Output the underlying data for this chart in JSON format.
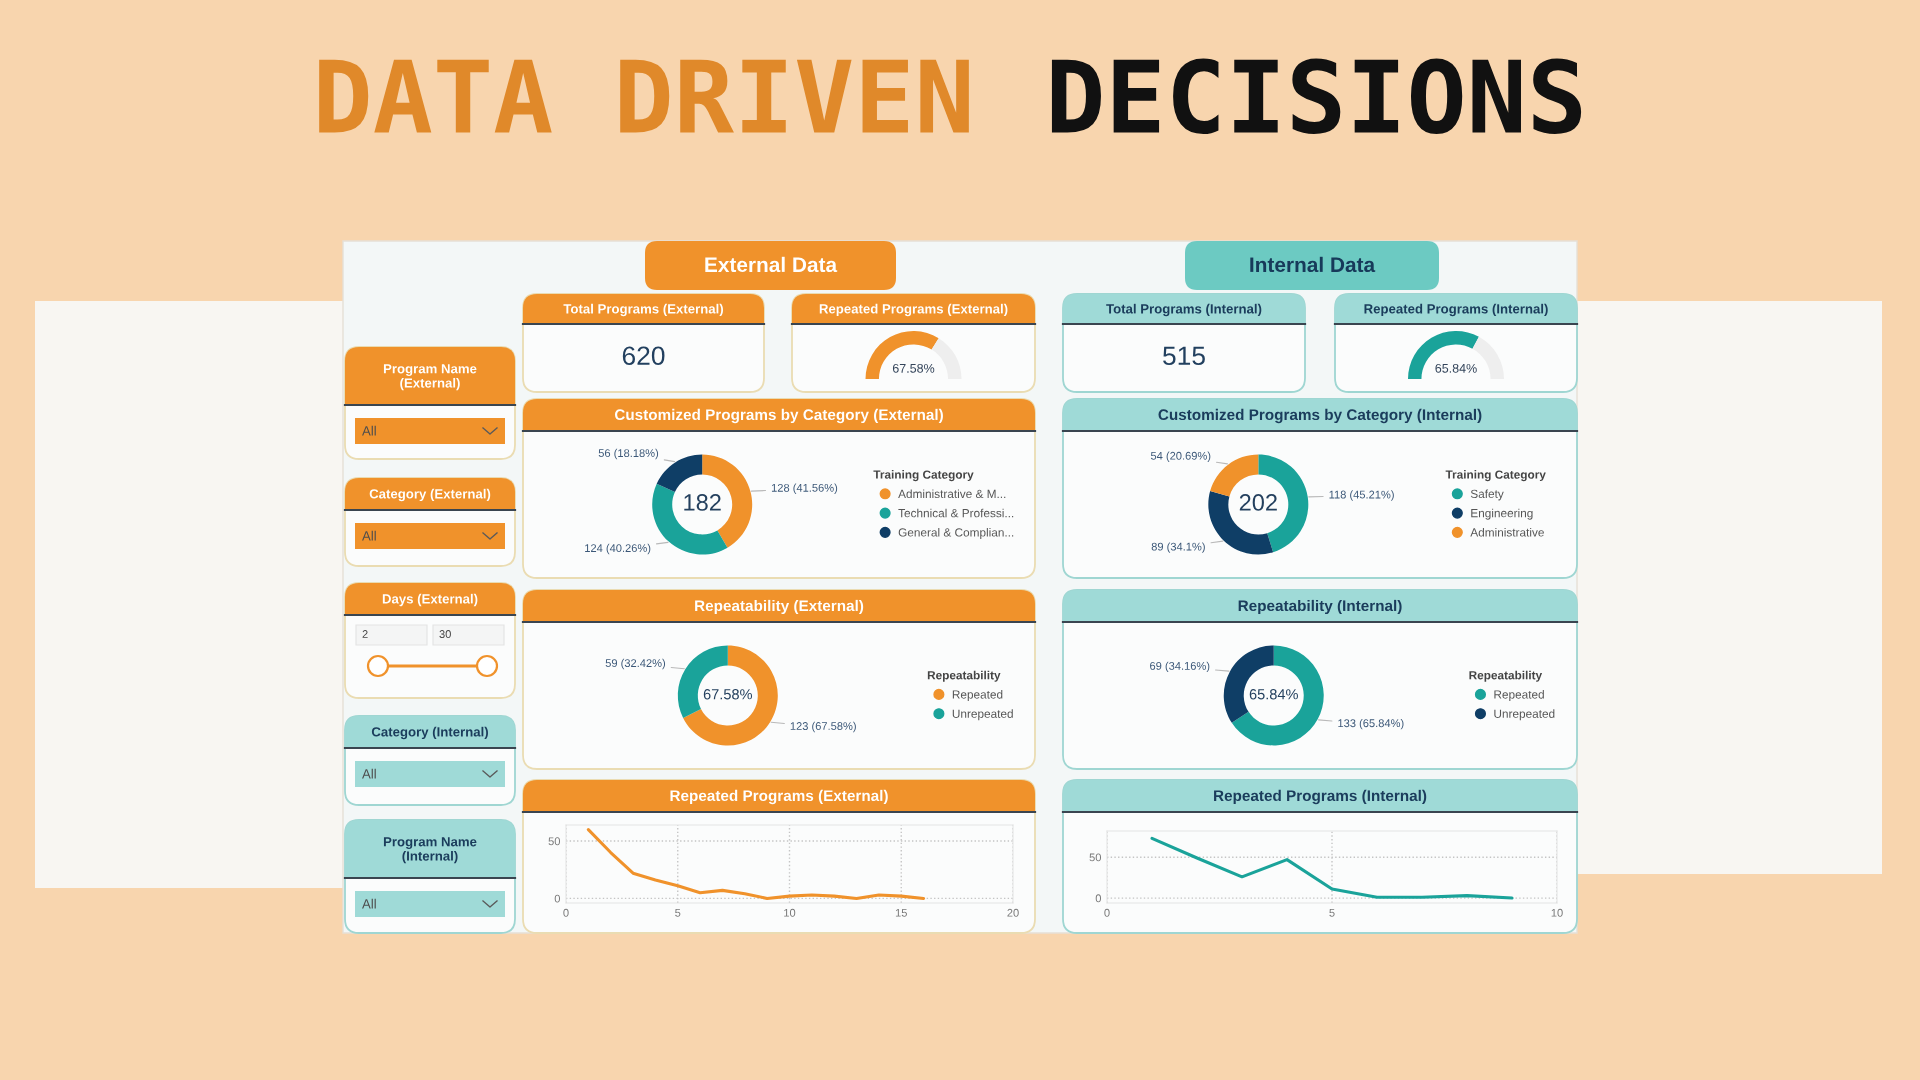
{
  "chart_data": [
    {
      "type": "other",
      "annotations": [
        "DATA DRIVEN",
        "DECISIONS"
      ]
    },
    {
      "type": "other",
      "title": "Program Name (External)",
      "annotations": [
        "All"
      ]
    },
    {
      "type": "other",
      "title": "Category (External)",
      "annotations": [
        "All"
      ]
    },
    {
      "type": "other",
      "title": "Days (External)",
      "annotations": [
        "2",
        "30"
      ]
    },
    {
      "type": "other",
      "title": "Category (Internal)",
      "annotations": [
        "All"
      ]
    },
    {
      "type": "other",
      "title": "Program Name (Internal)",
      "annotations": [
        "All"
      ]
    },
    {
      "type": "other",
      "title": "External Data"
    },
    {
      "type": "other",
      "title": "Total Programs (External)",
      "annotations": [
        "620"
      ]
    },
    {
      "type": "donut",
      "title": "Repeated Programs (External)",
      "categories": [
        null,
        null
      ],
      "values": [
        67.58,
        32.42
      ],
      "colors": [
        "#f0922b",
        "#eeeeee"
      ],
      "value_labels": [
        "67.58%",
        null
      ]
    },
    {
      "type": "donut",
      "title": "Customized Programs by Category (External)",
      "categories": [
        "Administrative & M...",
        "Technical & Professi...",
        "General & Complian..."
      ],
      "values": [
        128,
        124,
        56
      ],
      "colors": [
        "#f0922b",
        "#1aa39a",
        "#0f3e66"
      ],
      "value_labels": [
        "128 (41.56%)",
        "124 (40.26%)",
        "56 (18.18%)"
      ],
      "legend_title": "Training Category",
      "legend": "right",
      "annotations": [
        "182"
      ]
    },
    {
      "type": "donut",
      "title": "Repeatability (External)",
      "categories": [
        "Repeated",
        "Unrepeated"
      ],
      "values": [
        123,
        59
      ],
      "colors": [
        "#f0922b",
        "#1aa39a"
      ],
      "value_labels": [
        "123 (67.58%)",
        "59 (32.42%)"
      ],
      "legend_title": "Repeatability",
      "legend": "right",
      "annotations": [
        "67.58%"
      ]
    },
    {
      "type": "line",
      "title": "Repeated Programs (External)",
      "x": [
        1,
        2,
        3,
        4,
        5,
        6,
        7,
        8,
        9,
        10,
        11,
        12,
        13,
        14,
        15,
        16
      ],
      "values": [
        60,
        40,
        22,
        16,
        11,
        5,
        7,
        4,
        0,
        2,
        3,
        2,
        0,
        3,
        2,
        0
      ],
      "color": "#f0922b",
      "xlim": [
        0,
        20
      ],
      "xticks": [
        0,
        5,
        10,
        15,
        20
      ],
      "ylim": [
        -4,
        64
      ],
      "yticks": [
        0,
        50
      ],
      "grid": true
    },
    {
      "type": "other",
      "title": "Internal Data"
    },
    {
      "type": "other",
      "title": "Total Programs (Internal)",
      "annotations": [
        "515"
      ]
    },
    {
      "type": "donut",
      "title": "Repeated Programs (Internal)",
      "categories": [
        null,
        null
      ],
      "values": [
        65.84,
        34.16
      ],
      "colors": [
        "#1aa39a",
        "#eeeeee"
      ],
      "value_labels": [
        "65.84%",
        null
      ]
    },
    {
      "type": "donut",
      "title": "Customized Programs by Category (Internal)",
      "categories": [
        "Safety",
        "Engineering",
        "Administrative"
      ],
      "values": [
        118,
        89,
        54
      ],
      "colors": [
        "#1aa39a",
        "#0f3e66",
        "#f0922b"
      ],
      "value_labels": [
        "118 (45.21%)",
        "89 (34.1%)",
        "54 (20.69%)"
      ],
      "legend_title": "Training Category",
      "legend": "right",
      "annotations": [
        "202"
      ]
    },
    {
      "type": "donut",
      "title": "Repeatability (Internal)",
      "categories": [
        "Repeated",
        "Unrepeated"
      ],
      "values": [
        133,
        69
      ],
      "colors": [
        "#1aa39a",
        "#0f3e66"
      ],
      "value_labels": [
        "133 (65.84%)",
        "69 (34.16%)"
      ],
      "legend_title": "Repeatability",
      "legend": "right",
      "annotations": [
        "65.84%"
      ]
    },
    {
      "type": "line",
      "title": "Repeated Programs (Internal)",
      "x": [
        1,
        2,
        3,
        4,
        5,
        6,
        7,
        8,
        9
      ],
      "values": [
        73,
        49,
        26,
        47,
        11,
        1,
        1,
        3,
        0
      ],
      "color": "#1aa39a",
      "xlim": [
        0,
        10
      ],
      "xticks": [
        0,
        5,
        10
      ],
      "ylim": [
        -6,
        82
      ],
      "yticks": [
        0,
        50
      ],
      "grid": true
    }
  ]
}
